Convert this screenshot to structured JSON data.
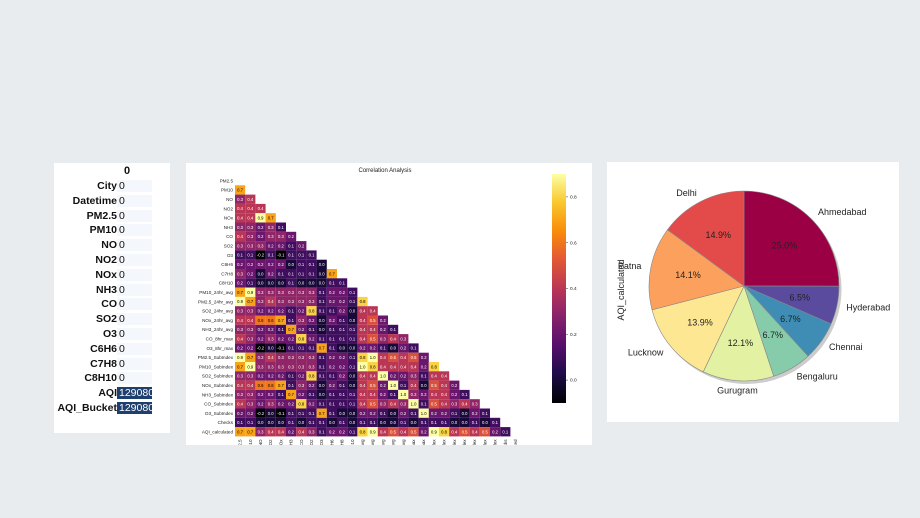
{
  "missing_table": {
    "column_header": "0",
    "rows": [
      {
        "label": "City",
        "value": "0"
      },
      {
        "label": "Datetime",
        "value": "0"
      },
      {
        "label": "PM2.5",
        "value": "0"
      },
      {
        "label": "PM10",
        "value": "0"
      },
      {
        "label": "NO",
        "value": "0"
      },
      {
        "label": "NO2",
        "value": "0"
      },
      {
        "label": "NOx",
        "value": "0"
      },
      {
        "label": "NH3",
        "value": "0"
      },
      {
        "label": "CO",
        "value": "0"
      },
      {
        "label": "SO2",
        "value": "0"
      },
      {
        "label": "O3",
        "value": "0"
      },
      {
        "label": "C6H6",
        "value": "0"
      },
      {
        "label": "C7H8",
        "value": "0"
      },
      {
        "label": "C8H10",
        "value": "0"
      },
      {
        "label": "AQI",
        "value": "129080",
        "highlight": true
      },
      {
        "label": "AQI_Bucket",
        "value": "129080",
        "highlight": true
      }
    ]
  },
  "chart_data": [
    {
      "type": "heatmap",
      "title": "Correlation Analysis",
      "variables": [
        "PM2.5",
        "PM10",
        "NO",
        "NO2",
        "NOx",
        "NH3",
        "CO",
        "SO2",
        "O3",
        "C6H6",
        "C7H8",
        "C8H10",
        "PM10_24hr_avg",
        "PM2.5_24hr_avg",
        "SO2_24hr_avg",
        "NOx_24hr_avg",
        "NH3_24hr_avg",
        "CO_8hr_max",
        "O3_8hr_max",
        "PM2.5_SubIndex",
        "PM10_SubIndex",
        "SO2_SubIndex",
        "NOx_SubIndex",
        "NH3_SubIndex",
        "CO_SubIndex",
        "O3_SubIndex",
        "Checks",
        "AQI_calculated"
      ],
      "lower_triangle_rows": [
        [],
        [
          0.7
        ],
        [
          0.3,
          0.4
        ],
        [
          0.4,
          0.4,
          0.4
        ],
        [
          0.4,
          0.4,
          0.9,
          0.7
        ],
        [
          0.3,
          0.3,
          0.2,
          0.3,
          0.1
        ],
        [
          0.4,
          0.3,
          0.2,
          0.3,
          0.3,
          0.2
        ],
        [
          0.3,
          0.3,
          0.3,
          0.2,
          0.2,
          0.1,
          0.2
        ],
        [
          0.1,
          0.1,
          -0.2,
          0.1,
          -0.1,
          0.1,
          0.1,
          0.1
        ],
        [
          0.2,
          0.2,
          0.2,
          0.2,
          0.2,
          0.0,
          0.1,
          0.1,
          0.0
        ],
        [
          0.3,
          0.2,
          0.0,
          0.2,
          0.1,
          0.1,
          0.1,
          0.1,
          0.0,
          0.7
        ],
        [
          0.2,
          0.1,
          0.0,
          0.0,
          0.0,
          0.1,
          0.0,
          0.0,
          -0.0,
          0.1,
          0.1
        ],
        [
          0.7,
          0.9,
          0.3,
          0.3,
          0.3,
          0.3,
          0.3,
          0.3,
          0.1,
          0.2,
          0.2,
          0.1
        ],
        [
          0.9,
          0.7,
          0.3,
          0.4,
          0.3,
          0.3,
          0.3,
          0.3,
          0.1,
          0.2,
          0.2,
          0.1,
          0.8
        ],
        [
          0.3,
          0.3,
          0.2,
          0.2,
          0.2,
          0.1,
          0.2,
          0.8,
          0.1,
          0.1,
          0.2,
          0.0,
          0.4,
          0.4
        ],
        [
          0.4,
          0.4,
          0.6,
          0.6,
          0.7,
          0.1,
          0.3,
          0.2,
          -0.0,
          0.2,
          0.1,
          0.0,
          0.4,
          0.5,
          0.2
        ],
        [
          0.3,
          0.3,
          0.2,
          0.2,
          0.1,
          0.7,
          0.2,
          0.1,
          0.0,
          0.1,
          0.1,
          0.1,
          0.4,
          0.4,
          0.2,
          0.1
        ],
        [
          0.4,
          0.3,
          0.2,
          0.3,
          0.2,
          0.2,
          0.8,
          0.2,
          0.1,
          0.1,
          0.1,
          0.1,
          0.4,
          0.5,
          0.3,
          0.4,
          0.3
        ],
        [
          0.2,
          0.2,
          -0.2,
          0.0,
          -0.1,
          0.1,
          0.1,
          0.1,
          0.7,
          0.1,
          0.0,
          0.0,
          0.2,
          0.2,
          0.1,
          0.0,
          0.2,
          0.1
        ],
        [
          0.9,
          0.7,
          0.3,
          0.4,
          0.3,
          0.3,
          0.3,
          0.3,
          0.1,
          0.2,
          0.2,
          0.1,
          0.8,
          1.0,
          0.4,
          0.5,
          0.4,
          0.5,
          0.2
        ],
        [
          0.7,
          0.9,
          0.3,
          0.3,
          0.3,
          0.3,
          0.3,
          0.3,
          0.1,
          0.2,
          0.2,
          0.1,
          1.0,
          0.8,
          0.4,
          0.4,
          0.4,
          0.4,
          0.2,
          0.8
        ],
        [
          0.3,
          0.3,
          0.2,
          0.2,
          0.2,
          0.1,
          0.2,
          0.8,
          0.1,
          0.1,
          0.2,
          0.0,
          0.4,
          0.4,
          1.0,
          0.2,
          0.2,
          0.3,
          0.1,
          0.4,
          0.4
        ],
        [
          0.4,
          0.4,
          0.6,
          0.6,
          0.7,
          0.1,
          0.3,
          0.2,
          -0.0,
          0.2,
          0.1,
          0.0,
          0.4,
          0.5,
          0.2,
          1.0,
          0.1,
          0.4,
          0.0,
          0.5,
          0.4,
          0.2
        ],
        [
          0.3,
          0.3,
          0.2,
          0.2,
          0.1,
          0.7,
          0.2,
          0.1,
          0.0,
          0.1,
          0.1,
          0.1,
          0.4,
          0.4,
          0.2,
          0.1,
          1.0,
          0.3,
          0.2,
          0.4,
          0.4,
          0.2,
          0.1
        ],
        [
          0.4,
          0.3,
          0.2,
          0.3,
          0.2,
          0.2,
          0.8,
          0.2,
          0.1,
          0.1,
          0.1,
          0.1,
          0.4,
          0.5,
          0.3,
          0.4,
          0.3,
          1.0,
          0.1,
          0.5,
          0.4,
          0.3,
          0.4,
          0.3
        ],
        [
          0.2,
          0.2,
          -0.2,
          0.0,
          -0.1,
          0.1,
          0.1,
          0.1,
          0.7,
          0.1,
          0.0,
          0.0,
          0.2,
          0.2,
          0.1,
          0.0,
          0.2,
          0.1,
          1.0,
          0.2,
          0.2,
          0.1,
          0.0,
          0.2,
          0.1
        ],
        [
          0.1,
          0.1,
          0.0,
          0.0,
          0.0,
          0.1,
          0.0,
          0.1,
          0.1,
          0.0,
          0.1,
          0.0,
          0.1,
          0.1,
          0.0,
          0.0,
          0.1,
          0.0,
          0.1,
          0.1,
          0.1,
          0.0,
          0.0,
          0.1,
          0.0,
          0.1
        ],
        [
          0.7,
          0.7,
          0.3,
          0.4,
          0.4,
          0.2,
          0.4,
          0.3,
          0.1,
          0.2,
          0.2,
          0.1,
          0.8,
          0.9,
          0.4,
          0.5,
          0.4,
          0.5,
          0.2,
          0.9,
          0.8,
          0.4,
          0.5,
          0.4,
          0.5,
          0.2,
          0.1
        ]
      ],
      "colorbar": {
        "min": -0.1,
        "max": 0.9,
        "ticks": [
          0.0,
          0.2,
          0.4,
          0.6,
          0.8
        ],
        "colormap": "inferno"
      }
    },
    {
      "type": "pie",
      "ylabel": "AQI_calculated",
      "slices": [
        {
          "label": "Ahmedabad",
          "value": 25.0,
          "pct_label": "25.0%",
          "color": "#9b0044"
        },
        {
          "label": "Hyderabad",
          "value": 6.5,
          "pct_label": "6.5%",
          "color": "#5b4b9f"
        },
        {
          "label": "Chennai",
          "value": 6.7,
          "pct_label": "6.7%",
          "color": "#3f8cb4"
        },
        {
          "label": "Bengaluru",
          "value": 6.7,
          "pct_label": "6.7%",
          "color": "#86ccab"
        },
        {
          "label": "Gurugram",
          "value": 12.1,
          "pct_label": "12.1%",
          "color": "#e3f2a2"
        },
        {
          "label": "Lucknow",
          "value": 13.9,
          "pct_label": "13.9%",
          "color": "#fee793"
        },
        {
          "label": "Patna",
          "value": 14.1,
          "pct_label": "14.1%",
          "color": "#fca05d"
        },
        {
          "label": "Delhi",
          "value": 14.9,
          "pct_label": "14.9%",
          "color": "#e34b4b"
        }
      ]
    }
  ]
}
